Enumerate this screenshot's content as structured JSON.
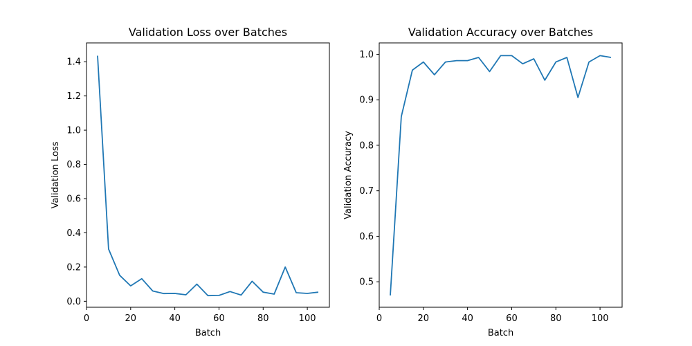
{
  "chart_data": [
    {
      "type": "line",
      "title": "Validation Loss over Batches",
      "xlabel": "Batch",
      "ylabel": "Validation Loss",
      "xlim": [
        0,
        110
      ],
      "ylim": [
        -0.035,
        1.51
      ],
      "xticks": [
        0,
        20,
        40,
        60,
        80,
        100
      ],
      "yticks": [
        0.0,
        0.2,
        0.4,
        0.6,
        0.8,
        1.0,
        1.2,
        1.4
      ],
      "xtick_labels": [
        "0",
        "20",
        "40",
        "60",
        "80",
        "100"
      ],
      "ytick_labels": [
        "0.0",
        "0.2",
        "0.4",
        "0.6",
        "0.8",
        "1.0",
        "1.2",
        "1.4"
      ],
      "grid": false,
      "color": "#1f77b4",
      "x": [
        5,
        10,
        15,
        20,
        25,
        30,
        35,
        40,
        45,
        50,
        55,
        60,
        65,
        70,
        75,
        80,
        85,
        90,
        95,
        100,
        105
      ],
      "y": [
        1.435,
        0.305,
        0.152,
        0.09,
        0.132,
        0.06,
        0.045,
        0.046,
        0.038,
        0.1,
        0.033,
        0.034,
        0.057,
        0.036,
        0.117,
        0.053,
        0.042,
        0.2,
        0.05,
        0.046,
        0.053
      ]
    },
    {
      "type": "line",
      "title": "Validation Accuracy over Batches",
      "xlabel": "Batch",
      "ylabel": "Validation Accuracy",
      "xlim": [
        0,
        110
      ],
      "ylim": [
        0.444,
        1.025
      ],
      "xticks": [
        0,
        20,
        40,
        60,
        80,
        100
      ],
      "yticks": [
        0.5,
        0.6,
        0.7,
        0.8,
        0.9,
        1.0
      ],
      "xtick_labels": [
        "0",
        "20",
        "40",
        "60",
        "80",
        "100"
      ],
      "ytick_labels": [
        "0.5",
        "0.6",
        "0.7",
        "0.8",
        "0.9",
        "1.0"
      ],
      "grid": false,
      "color": "#1f77b4",
      "x": [
        5,
        10,
        15,
        20,
        25,
        30,
        35,
        40,
        45,
        50,
        55,
        60,
        65,
        70,
        75,
        80,
        85,
        90,
        95,
        100,
        105
      ],
      "y": [
        0.47,
        0.863,
        0.965,
        0.983,
        0.955,
        0.983,
        0.986,
        0.986,
        0.993,
        0.962,
        0.997,
        0.997,
        0.979,
        0.99,
        0.943,
        0.983,
        0.993,
        0.905,
        0.983,
        0.997,
        0.993
      ]
    }
  ]
}
